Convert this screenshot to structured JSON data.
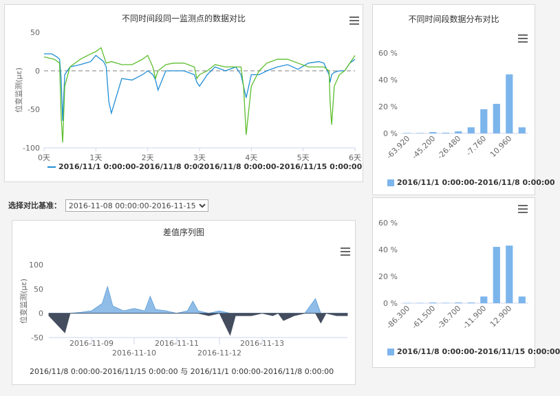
{
  "line_panel": {
    "title": "不同时间段同一监测点的数据对比",
    "ylabel": "位变监测(με)",
    "yticks": [
      "50",
      "0",
      "-50",
      "-100"
    ],
    "xticks": [
      "0天",
      "1天",
      "2天",
      "3天",
      "4天",
      "5天",
      "6天"
    ],
    "legend": [
      "2016/11/1 0:00:00-2016/11/8 0:00:00",
      "2016/11/8 0:00:00-2016/11/15 0:00:00"
    ]
  },
  "selector": {
    "label": "选择对比基准：",
    "value": "2016-11-08 00:00:00-2016-11-15 00:00:00"
  },
  "diff_panel": {
    "title": "差值序列图",
    "ylabel": "位变监测(με)",
    "yticks": [
      "100",
      "50",
      "0",
      "-50"
    ],
    "xticks": [
      "2016-11-09",
      "2016-11-10",
      "2016-11-11",
      "2016-11-12",
      "2016-11-13"
    ],
    "caption": "2016/11/8 0:00:00-2016/11/15 0:00:00 与 2016/11/1 0:00:00-2016/11/8 0:00:00"
  },
  "dist_panel": {
    "title": "不同时间段数据分布对比",
    "top_yticks": [
      "60 %",
      "40 %",
      "20 %",
      "0 %"
    ],
    "top_xticks": [
      "-63.920",
      "-45.200",
      "-26.480",
      "-7.760",
      "10.960"
    ],
    "top_legend": "2016/11/1 0:00:00-2016/11/8 0:00:00",
    "bottom_yticks": [
      "60 %",
      "40 %",
      "20 %",
      "0 %"
    ],
    "bottom_xticks": [
      "-86.300",
      "-61.500",
      "-36.700",
      "-11.900",
      "12.900"
    ],
    "bottom_legend": "2016/11/8 0:00:00-2016/11/15 0:00:00"
  },
  "colors": {
    "series1": "#1f8dd6",
    "series2": "#5cbd2c",
    "bar": "#7cb5ec",
    "diff_pos": "#8fbde8",
    "diff_neg": "#434d5e"
  },
  "chart_data": [
    {
      "type": "line",
      "title": "不同时间段同一监测点的数据对比",
      "ylabel": "位变监测(με)",
      "xlim": [
        0,
        6
      ],
      "ylim": [
        -100,
        50
      ],
      "series": [
        {
          "name": "2016/11/1 0:00:00-2016/11/8 0:00:00",
          "x": [
            0,
            0.15,
            0.25,
            0.3,
            0.33,
            0.36,
            0.4,
            0.5,
            0.7,
            0.9,
            1.0,
            1.15,
            1.2,
            1.25,
            1.3,
            1.5,
            1.7,
            1.9,
            2.0,
            2.1,
            2.15,
            2.2,
            2.35,
            2.5,
            2.7,
            2.9,
            2.95,
            3.0,
            3.15,
            3.3,
            3.5,
            3.7,
            3.8,
            3.85,
            3.9,
            4.0,
            4.15,
            4.3,
            4.5,
            4.7,
            4.9,
            5.1,
            5.3,
            5.4,
            5.5,
            5.52,
            5.55,
            5.6,
            5.7,
            5.8,
            5.9,
            6.0
          ],
          "values": [
            22,
            22,
            18,
            15,
            -10,
            -65,
            -5,
            5,
            8,
            12,
            20,
            12,
            5,
            -40,
            -55,
            -10,
            -12,
            -5,
            0,
            -5,
            -12,
            -25,
            0,
            0,
            0,
            -5,
            -15,
            -20,
            -5,
            5,
            0,
            5,
            -5,
            -20,
            -35,
            -5,
            -5,
            0,
            5,
            8,
            2,
            10,
            12,
            10,
            -5,
            -15,
            -5,
            -2,
            0,
            0,
            10,
            15
          ]
        },
        {
          "name": "2016/11/8 0:00:00-2016/11/15 0:00:00",
          "x": [
            0,
            0.2,
            0.3,
            0.33,
            0.36,
            0.4,
            0.5,
            0.7,
            0.9,
            1.0,
            1.1,
            1.15,
            1.2,
            1.3,
            1.5,
            1.7,
            1.9,
            2.0,
            2.1,
            2.15,
            2.2,
            2.35,
            2.5,
            2.7,
            2.9,
            2.95,
            3.0,
            3.15,
            3.3,
            3.5,
            3.7,
            3.8,
            3.85,
            3.9,
            4.0,
            4.15,
            4.3,
            4.5,
            4.7,
            4.9,
            5.1,
            5.3,
            5.4,
            5.5,
            5.52,
            5.55,
            5.6,
            5.7,
            5.8,
            5.9,
            6.0
          ],
          "values": [
            18,
            15,
            10,
            -60,
            -93,
            -20,
            5,
            15,
            22,
            25,
            30,
            20,
            10,
            12,
            8,
            8,
            15,
            20,
            5,
            -10,
            0,
            8,
            10,
            10,
            5,
            -10,
            -5,
            0,
            8,
            5,
            5,
            5,
            -20,
            -83,
            -20,
            0,
            10,
            15,
            15,
            10,
            5,
            5,
            5,
            0,
            -40,
            -70,
            -20,
            -5,
            0,
            10,
            20
          ]
        }
      ]
    },
    {
      "type": "area",
      "title": "差值序列图",
      "ylabel": "位变监测(με)",
      "xlabel": "",
      "ylim": [
        -50,
        100
      ],
      "x": [
        "2016-11-08 00:00",
        "2016-11-08 09:00",
        "2016-11-08 12:00",
        "2016-11-08 18:00",
        "2016-11-09 00:00",
        "2016-11-09 06:00",
        "2016-11-09 09:00",
        "2016-11-09 12:00",
        "2016-11-09 15:00",
        "2016-11-09 18:00",
        "2016-11-10 00:00",
        "2016-11-10 06:00",
        "2016-11-10 09:00",
        "2016-11-10 12:00",
        "2016-11-10 18:00",
        "2016-11-11 00:00",
        "2016-11-11 06:00",
        "2016-11-11 09:00",
        "2016-11-11 12:00",
        "2016-11-11 18:00",
        "2016-11-12 00:00",
        "2016-11-12 06:00",
        "2016-11-12 09:00",
        "2016-11-12 12:00",
        "2016-11-12 18:00",
        "2016-11-13 00:00",
        "2016-11-13 06:00",
        "2016-11-13 09:00",
        "2016-11-13 12:00",
        "2016-11-13 18:00",
        "2016-11-14 00:00",
        "2016-11-14 06:00",
        "2016-11-14 09:00",
        "2016-11-14 12:00",
        "2016-11-14 18:00",
        "2016-11-15 00:00"
      ],
      "values": [
        -5,
        -40,
        0,
        2,
        5,
        20,
        55,
        15,
        10,
        5,
        10,
        5,
        35,
        8,
        5,
        0,
        5,
        25,
        5,
        -5,
        5,
        -45,
        -5,
        -5,
        -5,
        0,
        -5,
        0,
        -15,
        -5,
        0,
        30,
        -20,
        0,
        -5,
        -5
      ]
    },
    {
      "type": "bar",
      "title": "不同时间段数据分布对比",
      "categories": [
        "-63.920",
        "",
        "-45.200",
        "",
        "-26.480",
        "",
        "-7.760",
        "",
        "10.960",
        ""
      ],
      "series": [
        {
          "name": "2016/11/1 0:00:00-2016/11/8 0:00:00",
          "values": [
            0.3,
            0.3,
            1.0,
            0.5,
            1.5,
            4.5,
            18,
            22,
            44,
            4.5
          ]
        }
      ],
      "ylim": [
        0,
        60
      ],
      "yunit": "%"
    },
    {
      "type": "bar",
      "categories": [
        "-86.300",
        "",
        "-61.500",
        "",
        "-36.700",
        "",
        "-11.900",
        "",
        "12.900",
        ""
      ],
      "series": [
        {
          "name": "2016/11/8 0:00:00-2016/11/15 0:00:00",
          "values": [
            0.2,
            0.2,
            0.5,
            0.3,
            0.5,
            0.5,
            5,
            42,
            43,
            5
          ]
        }
      ],
      "ylim": [
        0,
        60
      ],
      "yunit": "%"
    }
  ]
}
